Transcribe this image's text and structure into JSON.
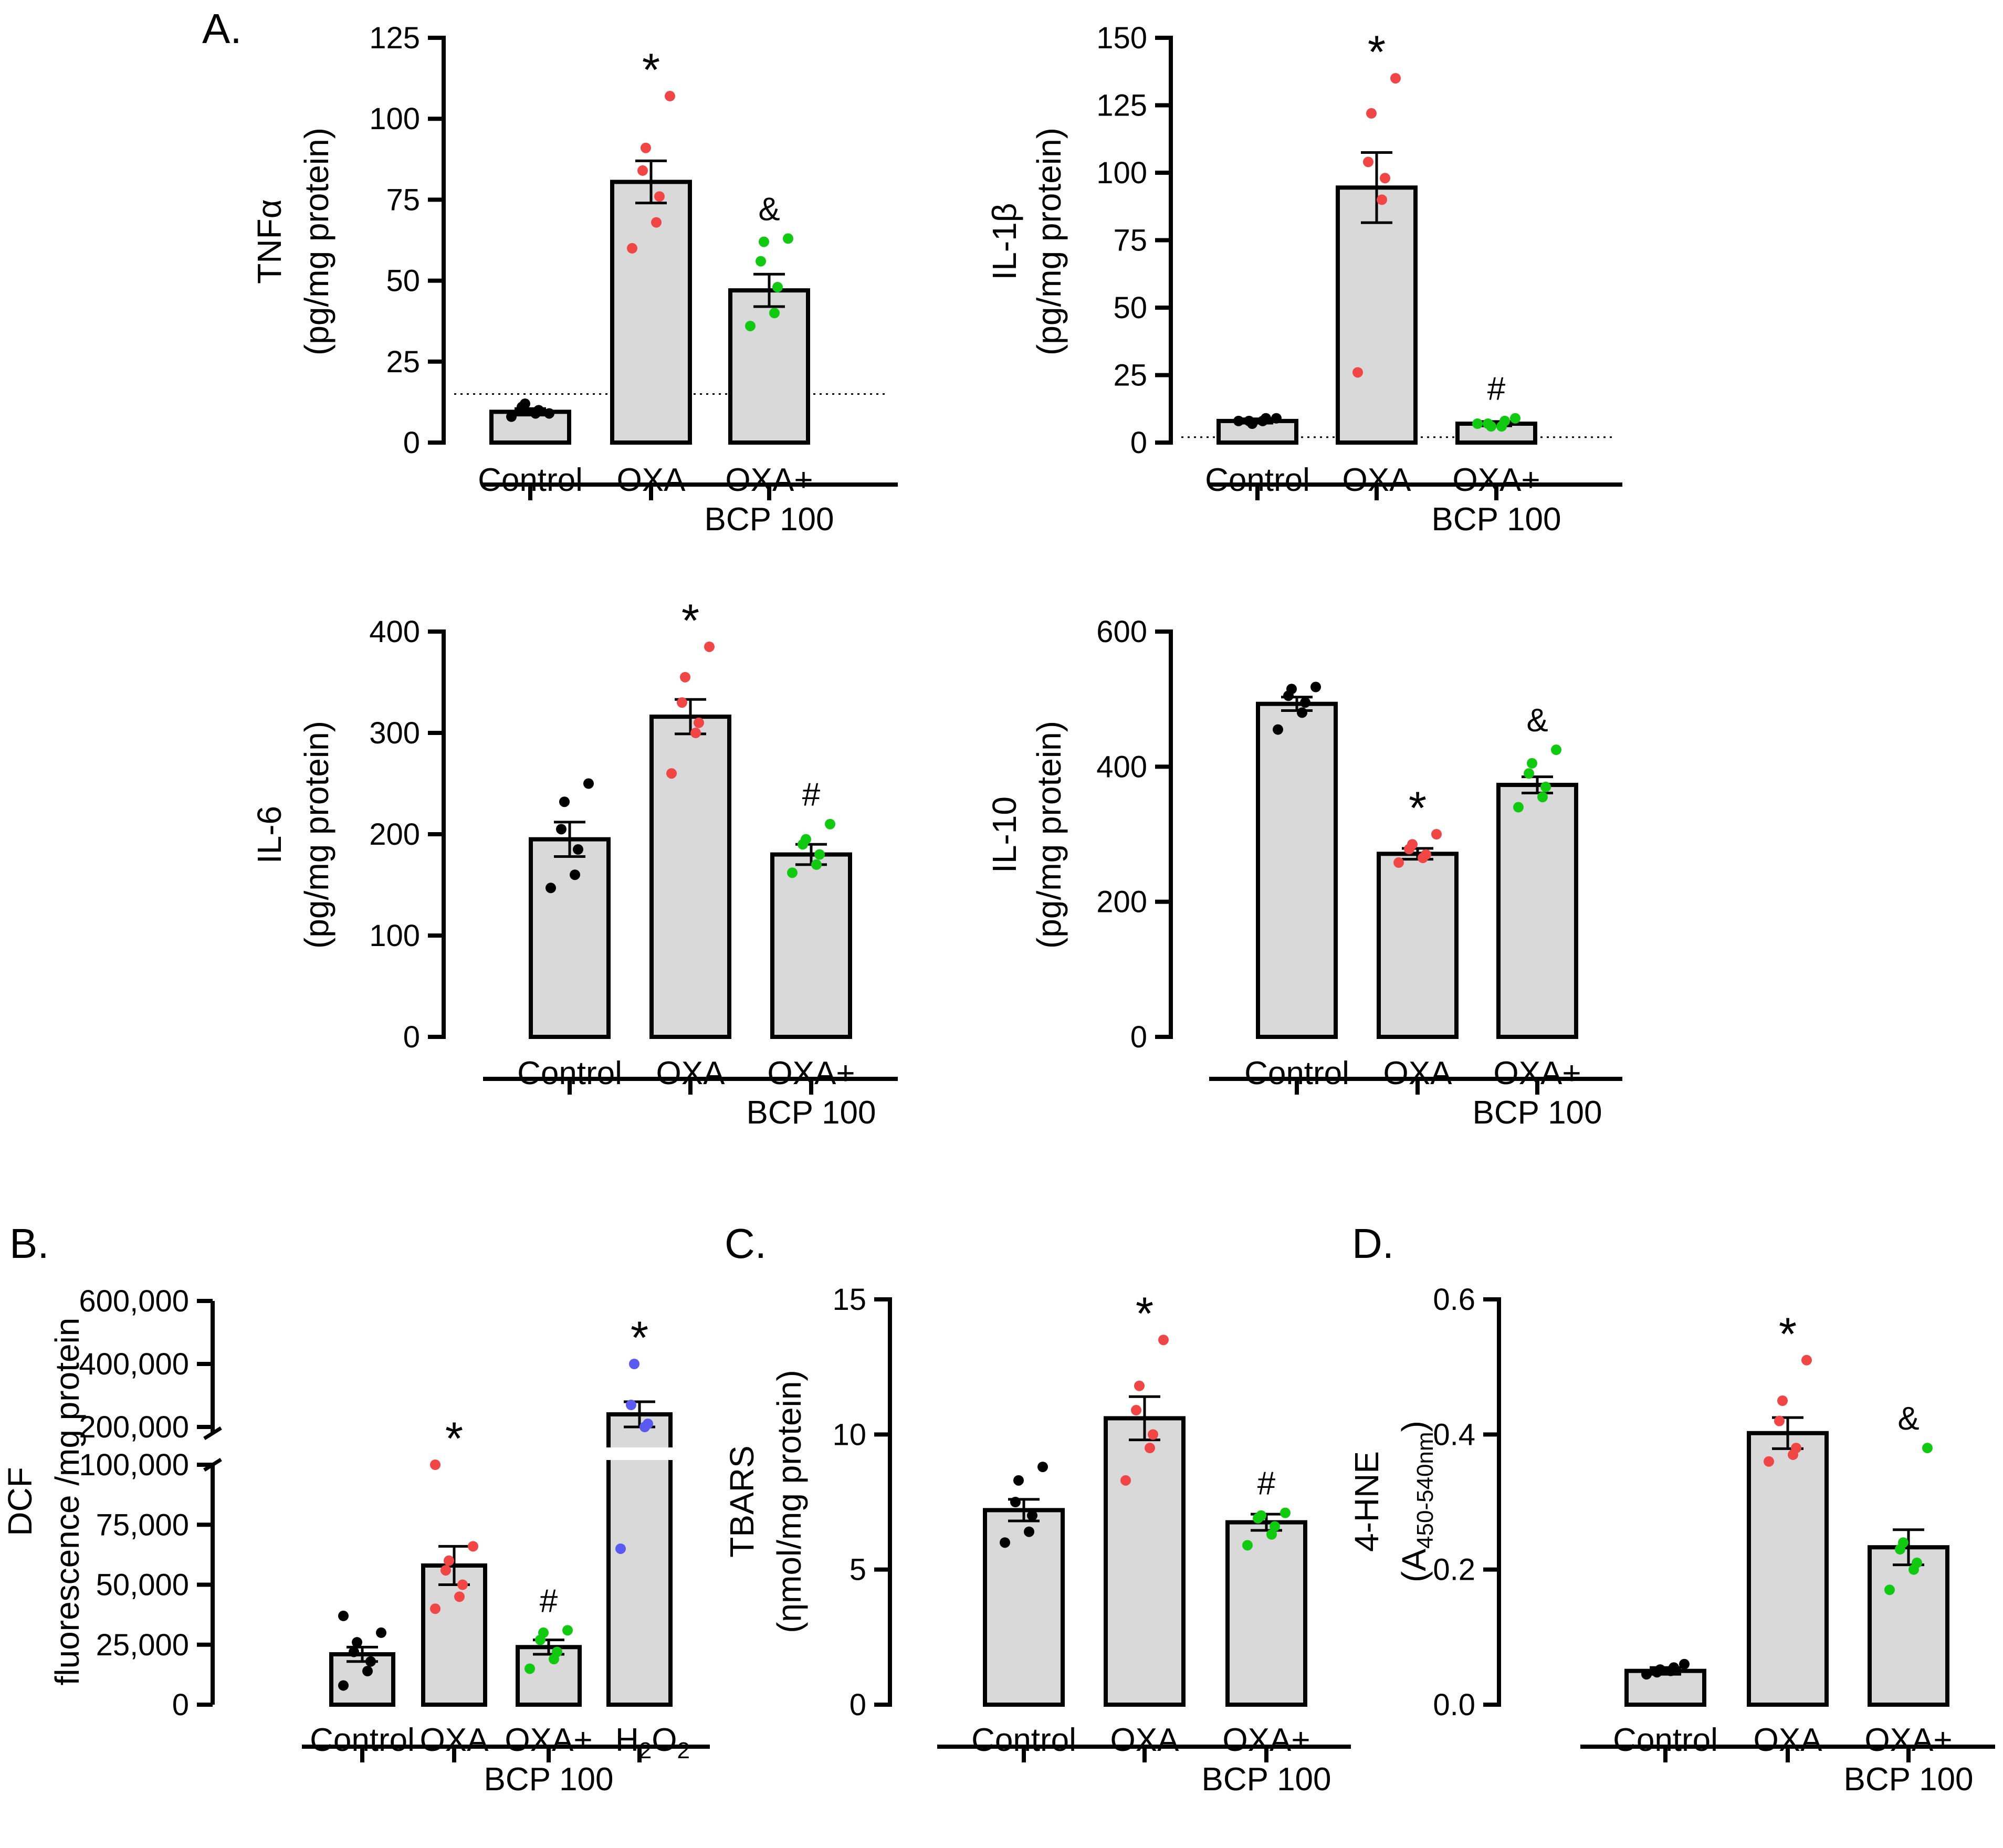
{
  "panel_labels": {
    "A": "A.",
    "B": "B.",
    "C": "C.",
    "D": "D."
  },
  "colors": {
    "control": "#000000",
    "oxa": "#f04646",
    "bcp": "#12c912",
    "h2o2": "#5a5af0",
    "bar": "#d9d9d9"
  },
  "chart_data": [
    {
      "id": "tnf",
      "type": "bar",
      "ylabel": [
        "TNFα",
        "(pg/mg protein)"
      ],
      "yticks": [
        0,
        25,
        50,
        75,
        100,
        125
      ],
      "ylim": [
        0,
        125
      ],
      "dotted_line": 15,
      "categories": [
        [
          "Control"
        ],
        [
          "OXA"
        ],
        [
          "OXA+",
          "BCP 100"
        ]
      ],
      "values": [
        9.5,
        80.5,
        47
      ],
      "sem": [
        1,
        6.5,
        5
      ],
      "points": [
        [
          8,
          9,
          10,
          11,
          12,
          9
        ],
        [
          60,
          68,
          76,
          84,
          91,
          107
        ],
        [
          36,
          40,
          48,
          56,
          62,
          63
        ]
      ],
      "annotations": [
        "",
        "*",
        "&"
      ]
    },
    {
      "id": "il1b",
      "type": "bar",
      "ylabel": [
        "IL-1β",
        "(pg/mg protein)"
      ],
      "yticks": [
        0,
        25,
        50,
        75,
        100,
        125,
        150
      ],
      "ylim": [
        0,
        150
      ],
      "dotted_line": 2,
      "categories": [
        [
          "Control"
        ],
        [
          "OXA"
        ],
        [
          "OXA+",
          "BCP 100"
        ]
      ],
      "values": [
        8,
        94.5,
        7
      ],
      "sem": [
        0.8,
        13,
        0.8
      ],
      "points": [
        [
          8,
          8,
          9,
          8,
          7,
          9
        ],
        [
          26,
          90,
          98,
          104,
          122,
          135
        ],
        [
          7,
          6,
          8,
          7,
          6,
          9
        ]
      ],
      "annotations": [
        "",
        "*",
        "#"
      ]
    },
    {
      "id": "il6",
      "type": "bar",
      "ylabel": [
        "IL-6",
        "(pg/mg protein)"
      ],
      "yticks": [
        0,
        100,
        200,
        300,
        400
      ],
      "ylim": [
        0,
        400
      ],
      "categories": [
        [
          "Control"
        ],
        [
          "OXA"
        ],
        [
          "OXA+",
          "BCP 100"
        ]
      ],
      "values": [
        195,
        316,
        180
      ],
      "sem": [
        17,
        17,
        10
      ],
      "points": [
        [
          147,
          160,
          185,
          205,
          232,
          250
        ],
        [
          260,
          300,
          310,
          330,
          355,
          385
        ],
        [
          162,
          170,
          180,
          190,
          195,
          210
        ]
      ],
      "annotations": [
        "",
        "*",
        "#"
      ]
    },
    {
      "id": "il10",
      "type": "bar",
      "ylabel": [
        "IL-10",
        "(pg/mg protein)"
      ],
      "yticks": [
        0,
        200,
        400,
        600
      ],
      "ylim": [
        0,
        600
      ],
      "categories": [
        [
          "Control"
        ],
        [
          "OXA"
        ],
        [
          "OXA+",
          "BCP 100"
        ]
      ],
      "values": [
        493,
        271,
        373
      ],
      "sem": [
        10,
        8,
        12
      ],
      "points": [
        [
          455,
          480,
          495,
          505,
          515,
          518
        ],
        [
          258,
          265,
          270,
          278,
          285,
          300
        ],
        [
          340,
          355,
          370,
          390,
          405,
          425
        ]
      ],
      "annotations": [
        "",
        "*",
        "&"
      ]
    },
    {
      "id": "dcf",
      "type": "bar",
      "ylabel": [
        "DCF",
        "fluorescence /mg protein"
      ],
      "broken_axis": true,
      "yticks": [
        0,
        25000,
        50000,
        75000,
        100000,
        200000,
        400000,
        600000
      ],
      "ytick_labels": [
        "0",
        "25,000",
        "50,000",
        "75,000",
        "100,000",
        "200,000",
        "400,000",
        "600,000"
      ],
      "categories": [
        [
          "Control"
        ],
        [
          "OXA"
        ],
        [
          "OXA+",
          "BCP 100"
        ],
        [
          "H2O2"
        ]
      ],
      "values": [
        21000,
        58000,
        24000,
        240000
      ],
      "sem": [
        3000,
        8000,
        3000,
        40000
      ],
      "points": [
        [
          8000,
          14000,
          18000,
          22000,
          26000,
          30000,
          37000
        ],
        [
          40000,
          45000,
          50000,
          56000,
          60000,
          66000,
          100000
        ],
        [
          15000,
          19000,
          22000,
          27000,
          30000,
          31000
        ],
        [
          65000,
          200000,
          210000,
          270000,
          400000
        ]
      ],
      "annotations": [
        "",
        "*",
        "#",
        "*"
      ]
    },
    {
      "id": "tbars",
      "type": "bar",
      "ylabel": [
        "TBARS",
        "(ηmol/mg protein)"
      ],
      "yticks": [
        0,
        5,
        10,
        15
      ],
      "ylim": [
        0,
        15
      ],
      "categories": [
        [
          "Control"
        ],
        [
          "OXA"
        ],
        [
          "OXA+",
          "BCP 100"
        ]
      ],
      "values": [
        7.2,
        10.6,
        6.75
      ],
      "sem": [
        0.4,
        0.8,
        0.3
      ],
      "points": [
        [
          6.0,
          6.4,
          7.0,
          7.5,
          8.3,
          8.8
        ],
        [
          8.3,
          9.5,
          10.0,
          10.9,
          11.8,
          13.5
        ],
        [
          5.9,
          6.3,
          6.6,
          6.9,
          7.0,
          7.1
        ]
      ],
      "annotations": [
        "",
        "*",
        "#"
      ]
    },
    {
      "id": "hne",
      "type": "bar",
      "ylabel": [
        "4-HNE",
        "(A",
        "450-540nm",
        ")"
      ],
      "yticks": [
        0.0,
        0.2,
        0.4,
        0.6
      ],
      "ytick_labels": [
        "0.0",
        "0.2",
        "0.4",
        "0.6"
      ],
      "ylim": [
        0,
        0.6
      ],
      "categories": [
        [
          "Control"
        ],
        [
          "OXA"
        ],
        [
          "OXA+",
          "BCP 100"
        ]
      ],
      "values": [
        0.05,
        0.402,
        0.233
      ],
      "sem": [
        0.005,
        0.023,
        0.026
      ],
      "points": [
        [
          0.045,
          0.05,
          0.055,
          0.048,
          0.052,
          0.06
        ],
        [
          0.36,
          0.37,
          0.38,
          0.42,
          0.45,
          0.51
        ],
        [
          0.17,
          0.2,
          0.21,
          0.23,
          0.24,
          0.38
        ]
      ],
      "annotations": [
        "",
        "*",
        "&"
      ]
    }
  ]
}
